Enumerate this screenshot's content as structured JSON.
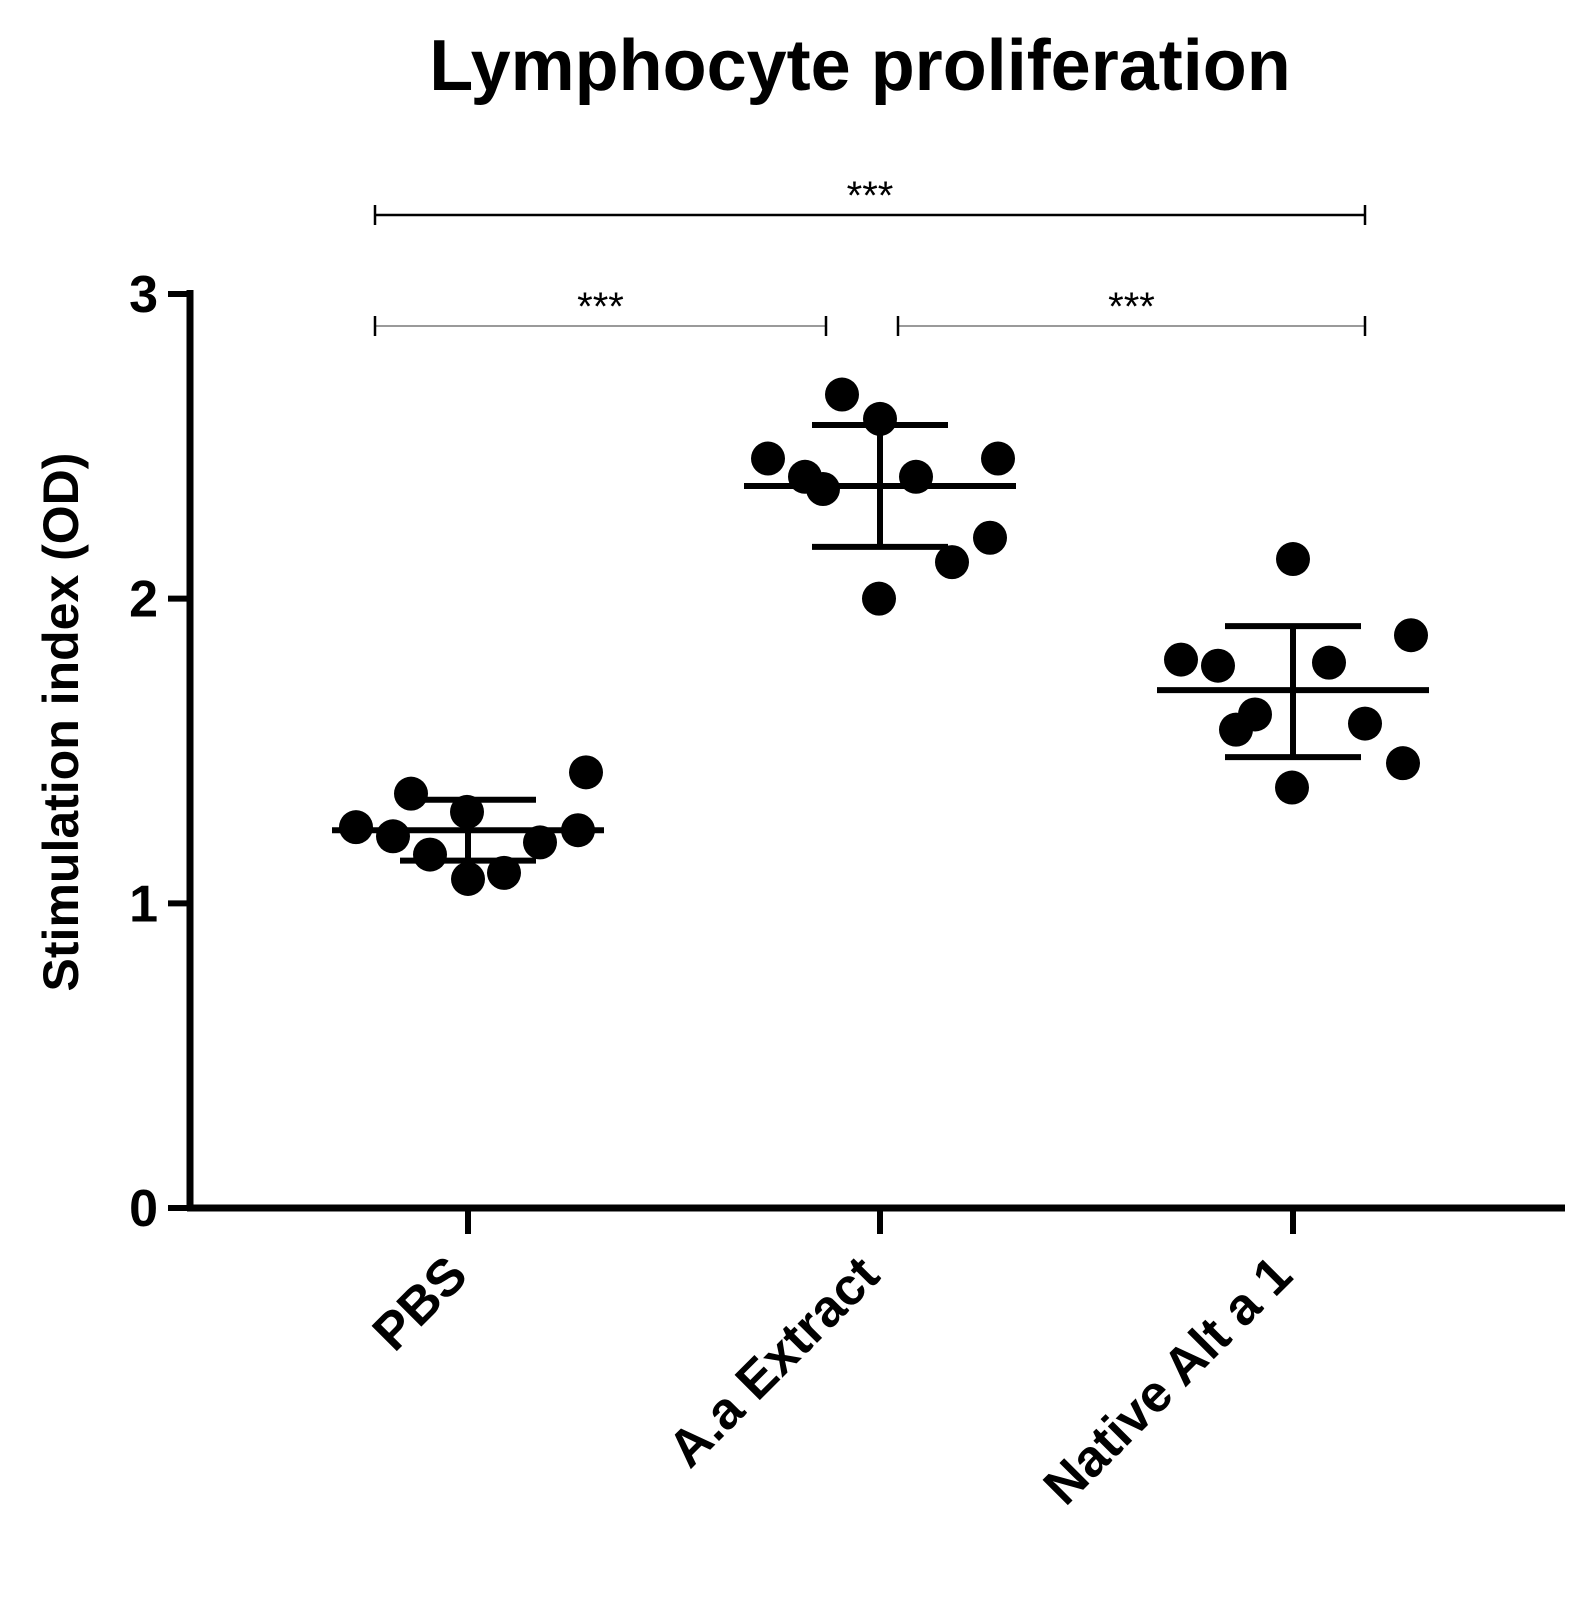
{
  "chart_data": {
    "type": "scatter",
    "title": "Lymphocyte proliferation",
    "xlabel": "",
    "ylabel": "Stimulation index (OD)",
    "ylim": [
      0,
      3
    ],
    "yticks": [
      "0",
      "1",
      "2",
      "3"
    ],
    "grid": false,
    "legend": "none",
    "categories": [
      "PBS",
      "A.a Extract",
      "Native Alt a 1"
    ],
    "series": [
      {
        "category": "PBS",
        "values": [
          1.25,
          1.22,
          1.36,
          1.16,
          1.3,
          1.08,
          1.1,
          1.2,
          1.24,
          1.43
        ],
        "mean": 1.24,
        "sd": [
          1.14,
          1.34
        ]
      },
      {
        "category": "A.a Extract",
        "values": [
          2.46,
          2.4,
          2.36,
          2.67,
          2.0,
          2.59,
          2.4,
          2.12,
          2.2,
          2.46
        ],
        "mean": 2.37,
        "sd": [
          2.17,
          2.57
        ]
      },
      {
        "category": "Native Alt a 1",
        "values": [
          1.8,
          1.78,
          1.57,
          1.62,
          1.38,
          2.13,
          1.79,
          1.59,
          1.46,
          1.88
        ],
        "mean": 1.7,
        "sd": [
          1.48,
          1.91
        ]
      }
    ],
    "annotations": [
      {
        "label": "***",
        "from": "PBS",
        "to": "Native Alt a 1",
        "color": "#000000"
      },
      {
        "label": "***",
        "from": "PBS",
        "to": "A.a Extract",
        "color": "#9a9a9a"
      },
      {
        "label": "***",
        "from": "A.a Extract",
        "to": "Native Alt a 1",
        "color": "#9a9a9a"
      }
    ],
    "colors": {
      "points": "#000000",
      "axes": "#000000"
    }
  }
}
